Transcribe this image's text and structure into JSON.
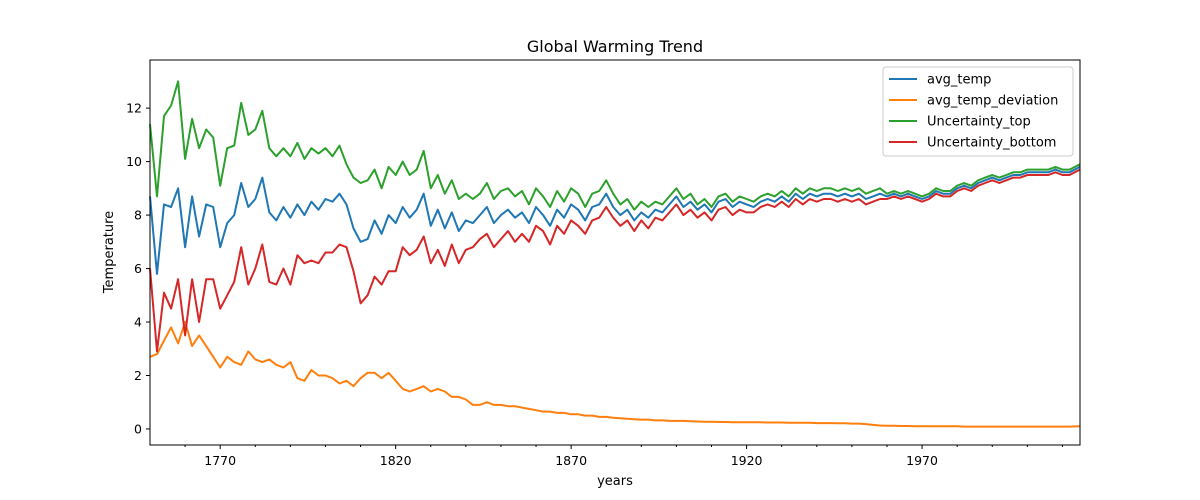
{
  "chart_data": {
    "type": "line",
    "title": "Global Warming Trend",
    "xlabel": "years",
    "ylabel": "Temperature",
    "xlim": [
      1750,
      2015
    ],
    "ylim": [
      -0.6,
      13.8
    ],
    "x_ticks": [
      1770,
      1820,
      1870,
      1920,
      1970
    ],
    "y_ticks": [
      0,
      2,
      4,
      6,
      8,
      10,
      12
    ],
    "x_tick_labels": [
      "1770",
      "1820",
      "1870",
      "1920",
      "1970"
    ],
    "y_tick_labels": [
      "0",
      "2",
      "4",
      "6",
      "8",
      "10",
      "12"
    ],
    "grid": false,
    "legend_position": "top-right",
    "x": [
      1750,
      1752,
      1754,
      1756,
      1758,
      1760,
      1762,
      1764,
      1766,
      1768,
      1770,
      1772,
      1774,
      1776,
      1778,
      1780,
      1782,
      1784,
      1786,
      1788,
      1790,
      1792,
      1794,
      1796,
      1798,
      1800,
      1802,
      1804,
      1806,
      1808,
      1810,
      1812,
      1814,
      1816,
      1818,
      1820,
      1822,
      1824,
      1826,
      1828,
      1830,
      1832,
      1834,
      1836,
      1838,
      1840,
      1842,
      1844,
      1846,
      1848,
      1850,
      1852,
      1854,
      1856,
      1858,
      1860,
      1862,
      1864,
      1866,
      1868,
      1870,
      1872,
      1874,
      1876,
      1878,
      1880,
      1882,
      1884,
      1886,
      1888,
      1890,
      1892,
      1894,
      1896,
      1898,
      1900,
      1902,
      1904,
      1906,
      1908,
      1910,
      1912,
      1914,
      1916,
      1918,
      1920,
      1922,
      1924,
      1926,
      1928,
      1930,
      1932,
      1934,
      1936,
      1938,
      1940,
      1942,
      1944,
      1946,
      1948,
      1950,
      1952,
      1954,
      1956,
      1958,
      1960,
      1962,
      1964,
      1966,
      1968,
      1970,
      1972,
      1974,
      1976,
      1978,
      1980,
      1982,
      1984,
      1986,
      1988,
      1990,
      1992,
      1994,
      1996,
      1998,
      2000,
      2002,
      2004,
      2006,
      2008,
      2010,
      2012,
      2015
    ],
    "series": [
      {
        "name": "avg_temp",
        "color": "#1f77b4",
        "values": [
          8.7,
          5.8,
          8.4,
          8.3,
          9.0,
          6.8,
          8.7,
          7.2,
          8.4,
          8.3,
          6.8,
          7.7,
          8.0,
          9.2,
          8.3,
          8.6,
          9.4,
          8.1,
          7.8,
          8.3,
          7.9,
          8.4,
          8.0,
          8.5,
          8.2,
          8.6,
          8.5,
          8.8,
          8.4,
          7.5,
          7.0,
          7.1,
          7.8,
          7.3,
          8.0,
          7.7,
          8.3,
          7.9,
          8.2,
          8.8,
          7.6,
          8.2,
          7.5,
          8.1,
          7.4,
          7.8,
          7.7,
          8.0,
          8.3,
          7.7,
          8.0,
          8.2,
          7.9,
          8.1,
          7.7,
          8.3,
          8.0,
          7.6,
          8.2,
          7.9,
          8.4,
          8.2,
          7.8,
          8.3,
          8.4,
          8.8,
          8.3,
          8.0,
          8.2,
          7.8,
          8.1,
          7.9,
          8.2,
          8.1,
          8.4,
          8.7,
          8.3,
          8.5,
          8.2,
          8.4,
          8.1,
          8.5,
          8.6,
          8.3,
          8.5,
          8.4,
          8.3,
          8.5,
          8.6,
          8.5,
          8.7,
          8.5,
          8.8,
          8.6,
          8.8,
          8.7,
          8.8,
          8.8,
          8.7,
          8.8,
          8.7,
          8.8,
          8.6,
          8.7,
          8.8,
          8.7,
          8.8,
          8.7,
          8.8,
          8.7,
          8.6,
          8.7,
          8.9,
          8.8,
          8.8,
          9.0,
          9.1,
          9.0,
          9.2,
          9.3,
          9.4,
          9.3,
          9.4,
          9.5,
          9.5,
          9.6,
          9.6,
          9.6,
          9.6,
          9.7,
          9.6,
          9.6,
          9.8
        ]
      },
      {
        "name": "avg_temp_deviation",
        "color": "#ff7f0e",
        "values": [
          2.7,
          2.8,
          3.3,
          3.8,
          3.2,
          4.0,
          3.1,
          3.5,
          3.1,
          2.7,
          2.3,
          2.7,
          2.5,
          2.4,
          2.9,
          2.6,
          2.5,
          2.6,
          2.4,
          2.3,
          2.5,
          1.9,
          1.8,
          2.2,
          2.0,
          2.0,
          1.9,
          1.7,
          1.8,
          1.6,
          1.9,
          2.1,
          2.1,
          1.9,
          2.1,
          1.8,
          1.5,
          1.4,
          1.5,
          1.6,
          1.4,
          1.5,
          1.4,
          1.2,
          1.2,
          1.1,
          0.9,
          0.9,
          1.0,
          0.9,
          0.9,
          0.85,
          0.85,
          0.8,
          0.75,
          0.7,
          0.65,
          0.65,
          0.6,
          0.6,
          0.55,
          0.55,
          0.5,
          0.5,
          0.45,
          0.45,
          0.42,
          0.4,
          0.38,
          0.36,
          0.35,
          0.35,
          0.32,
          0.32,
          0.3,
          0.3,
          0.3,
          0.29,
          0.28,
          0.27,
          0.27,
          0.26,
          0.26,
          0.25,
          0.25,
          0.25,
          0.25,
          0.25,
          0.24,
          0.24,
          0.24,
          0.23,
          0.23,
          0.23,
          0.23,
          0.22,
          0.22,
          0.22,
          0.21,
          0.21,
          0.2,
          0.2,
          0.18,
          0.15,
          0.13,
          0.12,
          0.12,
          0.11,
          0.11,
          0.1,
          0.1,
          0.1,
          0.1,
          0.1,
          0.1,
          0.1,
          0.09,
          0.09,
          0.09,
          0.09,
          0.09,
          0.09,
          0.09,
          0.09,
          0.09,
          0.09,
          0.09,
          0.09,
          0.09,
          0.09,
          0.09,
          0.09,
          0.1
        ]
      },
      {
        "name": "Uncertainty_top",
        "color": "#2ca02c",
        "values": [
          11.4,
          8.7,
          11.7,
          12.1,
          13.0,
          10.1,
          11.6,
          10.5,
          11.2,
          10.9,
          9.1,
          10.5,
          10.6,
          12.2,
          11.0,
          11.2,
          11.9,
          10.5,
          10.2,
          10.5,
          10.2,
          10.7,
          10.1,
          10.5,
          10.3,
          10.5,
          10.2,
          10.6,
          9.9,
          9.4,
          9.2,
          9.3,
          9.7,
          9.0,
          9.8,
          9.5,
          10.0,
          9.5,
          9.7,
          10.4,
          9.0,
          9.5,
          8.8,
          9.3,
          8.6,
          8.8,
          8.6,
          8.8,
          9.2,
          8.6,
          8.9,
          9.0,
          8.7,
          8.9,
          8.4,
          9.0,
          8.7,
          8.3,
          8.9,
          8.5,
          9.0,
          8.8,
          8.3,
          8.8,
          8.9,
          9.3,
          8.8,
          8.4,
          8.6,
          8.2,
          8.5,
          8.3,
          8.5,
          8.4,
          8.7,
          9.0,
          8.6,
          8.8,
          8.4,
          8.6,
          8.3,
          8.7,
          8.8,
          8.5,
          8.7,
          8.6,
          8.5,
          8.7,
          8.8,
          8.7,
          8.9,
          8.7,
          9.0,
          8.8,
          9.0,
          8.9,
          9.0,
          9.0,
          8.9,
          9.0,
          8.9,
          9.0,
          8.8,
          8.9,
          9.0,
          8.8,
          8.9,
          8.8,
          8.9,
          8.8,
          8.7,
          8.8,
          9.0,
          8.9,
          8.9,
          9.1,
          9.2,
          9.1,
          9.3,
          9.4,
          9.5,
          9.4,
          9.5,
          9.6,
          9.6,
          9.7,
          9.7,
          9.7,
          9.7,
          9.8,
          9.7,
          9.7,
          9.9
        ]
      },
      {
        "name": "Uncertainty_bottom",
        "color": "#d62728",
        "values": [
          6.0,
          2.9,
          5.1,
          4.5,
          5.6,
          3.5,
          5.6,
          4.0,
          5.6,
          5.6,
          4.5,
          5.0,
          5.5,
          6.8,
          5.4,
          6.0,
          6.9,
          5.5,
          5.4,
          6.0,
          5.4,
          6.5,
          6.2,
          6.3,
          6.2,
          6.6,
          6.6,
          6.9,
          6.8,
          5.9,
          4.7,
          5.0,
          5.7,
          5.4,
          5.9,
          5.9,
          6.8,
          6.5,
          6.7,
          7.2,
          6.2,
          6.7,
          6.1,
          6.9,
          6.2,
          6.7,
          6.8,
          7.1,
          7.3,
          6.8,
          7.1,
          7.4,
          7.0,
          7.3,
          7.0,
          7.6,
          7.4,
          6.9,
          7.6,
          7.3,
          7.8,
          7.6,
          7.3,
          7.8,
          7.9,
          8.3,
          7.9,
          7.6,
          7.8,
          7.4,
          7.8,
          7.5,
          7.9,
          7.8,
          8.1,
          8.4,
          8.0,
          8.2,
          7.9,
          8.1,
          7.8,
          8.2,
          8.3,
          8.0,
          8.2,
          8.1,
          8.1,
          8.3,
          8.4,
          8.3,
          8.5,
          8.3,
          8.6,
          8.4,
          8.6,
          8.5,
          8.6,
          8.6,
          8.5,
          8.6,
          8.5,
          8.6,
          8.4,
          8.5,
          8.6,
          8.6,
          8.7,
          8.6,
          8.7,
          8.6,
          8.5,
          8.6,
          8.8,
          8.7,
          8.7,
          8.9,
          9.0,
          8.9,
          9.1,
          9.2,
          9.3,
          9.2,
          9.3,
          9.4,
          9.4,
          9.5,
          9.5,
          9.5,
          9.5,
          9.6,
          9.5,
          9.5,
          9.7
        ]
      }
    ]
  }
}
